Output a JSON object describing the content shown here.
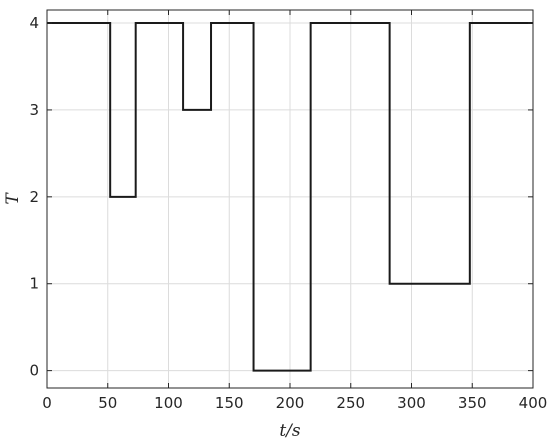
{
  "chart_data": {
    "type": "line",
    "step": true,
    "xlabel": "t/s",
    "ylabel": "T",
    "xlim": [
      0,
      400
    ],
    "ylim": [
      -0.2,
      4.15
    ],
    "xticks": [
      0,
      50,
      100,
      150,
      200,
      250,
      300,
      350,
      400
    ],
    "yticks": [
      0,
      1,
      2,
      3,
      4
    ],
    "xtick_labels": [
      "0",
      "50",
      "100",
      "150",
      "200",
      "250",
      "300",
      "350",
      "400"
    ],
    "ytick_labels": [
      "0",
      "1",
      "2",
      "3",
      "4"
    ],
    "grid": true,
    "legend": false,
    "series": [
      {
        "line_color": "#1a1a1a",
        "x": [
          0,
          52,
          52,
          73,
          73,
          112,
          112,
          135,
          135,
          170,
          170,
          217,
          217,
          282,
          282,
          348,
          348,
          400
        ],
        "y": [
          4,
          4,
          2,
          2,
          4,
          4,
          3,
          3,
          4,
          4,
          0,
          0,
          4,
          4,
          1,
          1,
          4,
          4
        ]
      }
    ]
  }
}
